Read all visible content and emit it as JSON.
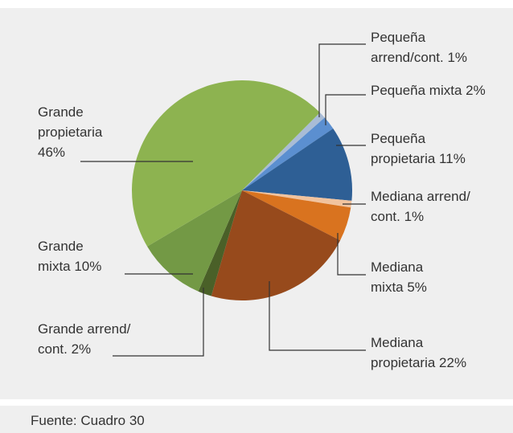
{
  "chart_data": {
    "type": "pie",
    "categories": [
      [
        "Pequeña",
        "arrend/cont. 1%"
      ],
      [
        "Pequeña mixta 2%"
      ],
      [
        "Pequeña",
        "propietaria 11%"
      ],
      [
        "Mediana arrend/",
        "cont. 1%"
      ],
      [
        "Mediana",
        "mixta 5%"
      ],
      [
        "Mediana",
        "propietaria 22%"
      ],
      [
        "Grande arrend/",
        "cont. 2%"
      ],
      [
        "Grande",
        "mixta 10%"
      ],
      [
        "Grande",
        "propietaria",
        "46%"
      ]
    ],
    "values": [
      1,
      2,
      11,
      1,
      5,
      22,
      2,
      10,
      46
    ],
    "colors": [
      "#a9bcd6",
      "#5b8fd0",
      "#2e5f95",
      "#f1c39e",
      "#d9731f",
      "#974a1c",
      "#4a6028",
      "#739945",
      "#8db350"
    ]
  },
  "footer": "Fuente: Cuadro 30"
}
